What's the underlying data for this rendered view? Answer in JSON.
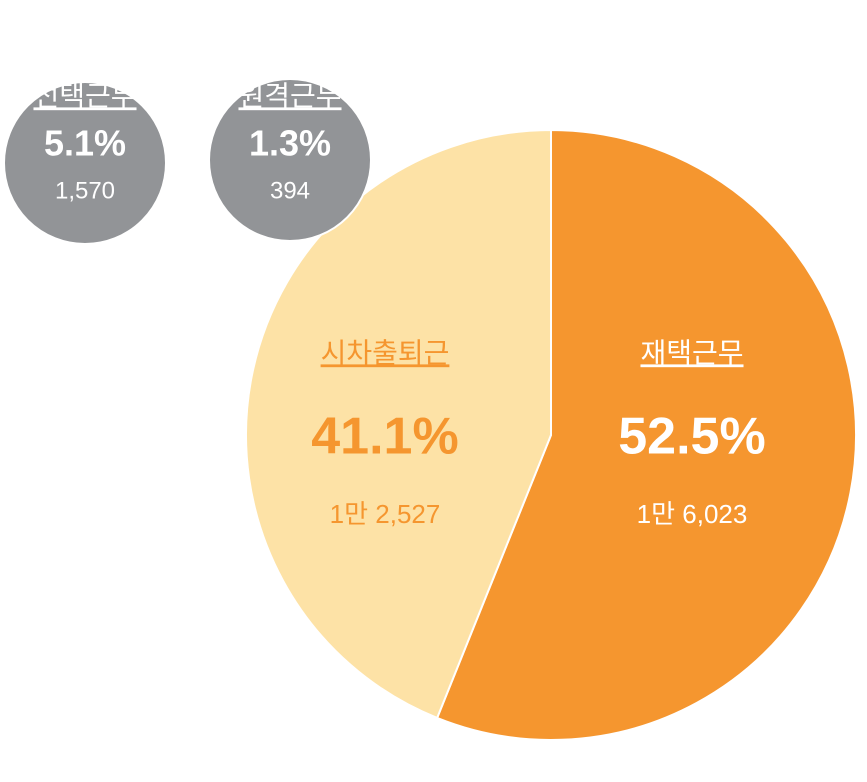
{
  "chart_data": [
    {
      "type": "pie",
      "categories": [
        "재택근무",
        "시차출퇴근"
      ],
      "values": [
        52.5,
        41.1
      ],
      "value_labels": [
        "52.5%",
        "41.1%"
      ],
      "counts": [
        16023,
        12527
      ],
      "count_labels": [
        "1만 6,023",
        "1만 2,527"
      ],
      "colors": [
        "#f5962f",
        "#fde2a6"
      ]
    },
    {
      "type": "bubble",
      "categories": [
        "선택근무",
        "원격근무"
      ],
      "values": [
        5.1,
        1.3
      ],
      "value_labels": [
        "5.1%",
        "1.3%"
      ],
      "counts": [
        1570,
        394
      ],
      "count_labels": [
        "1,570",
        "394"
      ],
      "color": "#929497"
    }
  ]
}
